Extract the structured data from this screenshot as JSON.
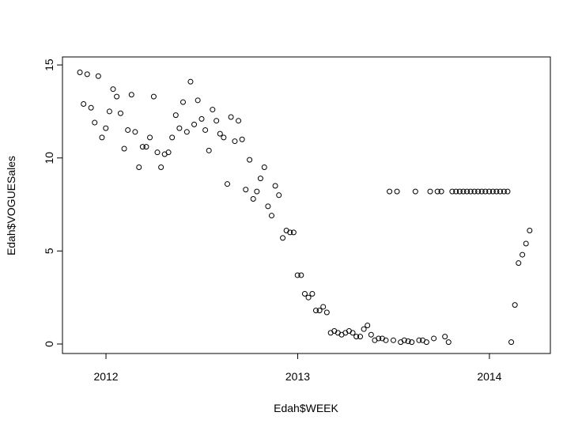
{
  "chart_data": {
    "type": "scatter",
    "xlabel": "Edah$WEEK",
    "ylabel": "Edah$VOGUESales",
    "x": [
      2011.864,
      2011.883,
      2011.902,
      2011.922,
      2011.941,
      2011.96,
      2011.979,
      2011.999,
      2012.018,
      2012.037,
      2012.056,
      2012.076,
      2012.095,
      2012.114,
      2012.133,
      2012.152,
      2012.172,
      2012.191,
      2012.21,
      2012.229,
      2012.249,
      2012.268,
      2012.287,
      2012.306,
      2012.326,
      2012.345,
      2012.364,
      2012.383,
      2012.402,
      2012.422,
      2012.441,
      2012.46,
      2012.479,
      2012.499,
      2012.518,
      2012.537,
      2012.556,
      2012.576,
      2012.595,
      2012.614,
      2012.633,
      2012.652,
      2012.672,
      2012.691,
      2012.71,
      2012.729,
      2012.749,
      2012.768,
      2012.787,
      2012.806,
      2012.826,
      2012.845,
      2012.864,
      2012.883,
      2012.902,
      2012.922,
      2012.941,
      2012.96,
      2012.979,
      2012.999,
      2013.018,
      2013.037,
      2013.056,
      2013.076,
      2013.095,
      2013.114,
      2013.133,
      2013.152,
      2013.172,
      2013.191,
      2013.21,
      2013.229,
      2013.249,
      2013.268,
      2013.287,
      2013.306,
      2013.326,
      2013.345,
      2013.364,
      2013.383,
      2013.402,
      2013.422,
      2013.441,
      2013.46,
      2013.479,
      2013.499,
      2013.518,
      2013.537,
      2013.556,
      2013.576,
      2013.595,
      2013.614,
      2013.633,
      2013.652,
      2013.672,
      2013.691,
      2013.71,
      2013.729,
      2013.749,
      2013.768,
      2013.787,
      2013.806,
      2013.826,
      2013.845,
      2013.864,
      2013.883,
      2013.902,
      2013.922,
      2013.941,
      2013.96,
      2013.979,
      2013.999,
      2014.018,
      2014.037,
      2014.056,
      2014.076,
      2014.095,
      2014.114,
      2014.133,
      2014.152,
      2014.172,
      2014.191,
      2014.21
    ],
    "values": [
      14.6,
      12.9,
      14.5,
      12.7,
      11.9,
      14.4,
      11.1,
      11.6,
      12.5,
      13.7,
      13.3,
      12.4,
      10.5,
      11.5,
      13.4,
      11.4,
      9.5,
      10.6,
      10.6,
      11.1,
      13.3,
      10.3,
      9.5,
      10.2,
      10.3,
      11.1,
      12.3,
      11.6,
      13.0,
      11.4,
      14.1,
      11.8,
      13.1,
      12.1,
      11.5,
      10.4,
      12.6,
      12.0,
      11.3,
      11.1,
      8.6,
      12.2,
      10.9,
      12.0,
      11.0,
      8.3,
      9.9,
      7.8,
      8.2,
      8.9,
      9.5,
      7.4,
      6.9,
      8.5,
      8.0,
      5.7,
      6.1,
      6.0,
      6.0,
      3.7,
      3.7,
      2.7,
      2.5,
      2.7,
      1.8,
      1.8,
      2.0,
      1.7,
      0.6,
      0.7,
      0.6,
      0.5,
      0.6,
      0.7,
      0.6,
      0.4,
      0.4,
      0.8,
      1.0,
      0.5,
      0.2,
      0.3,
      0.3,
      0.2,
      8.2,
      0.2,
      8.2,
      0.1,
      0.2,
      0.15,
      0.1,
      8.2,
      0.2,
      0.2,
      0.1,
      8.2,
      0.3,
      8.2,
      8.2,
      0.4,
      0.1,
      8.2,
      8.2,
      8.2,
      8.2,
      8.2,
      8.2,
      8.2,
      8.2,
      8.2,
      8.2,
      8.2,
      8.2,
      8.2,
      8.2,
      8.2,
      8.2,
      0.1,
      2.1,
      4.35,
      4.8,
      5.4,
      6.1
    ],
    "color": "#000000",
    "xlim": [
      2011.773,
      2014.318
    ],
    "ylim": [
      -0.51,
      15.43
    ],
    "xticks": [
      2012,
      2013,
      2014
    ],
    "yticks": [
      0,
      5,
      10,
      15
    ]
  }
}
